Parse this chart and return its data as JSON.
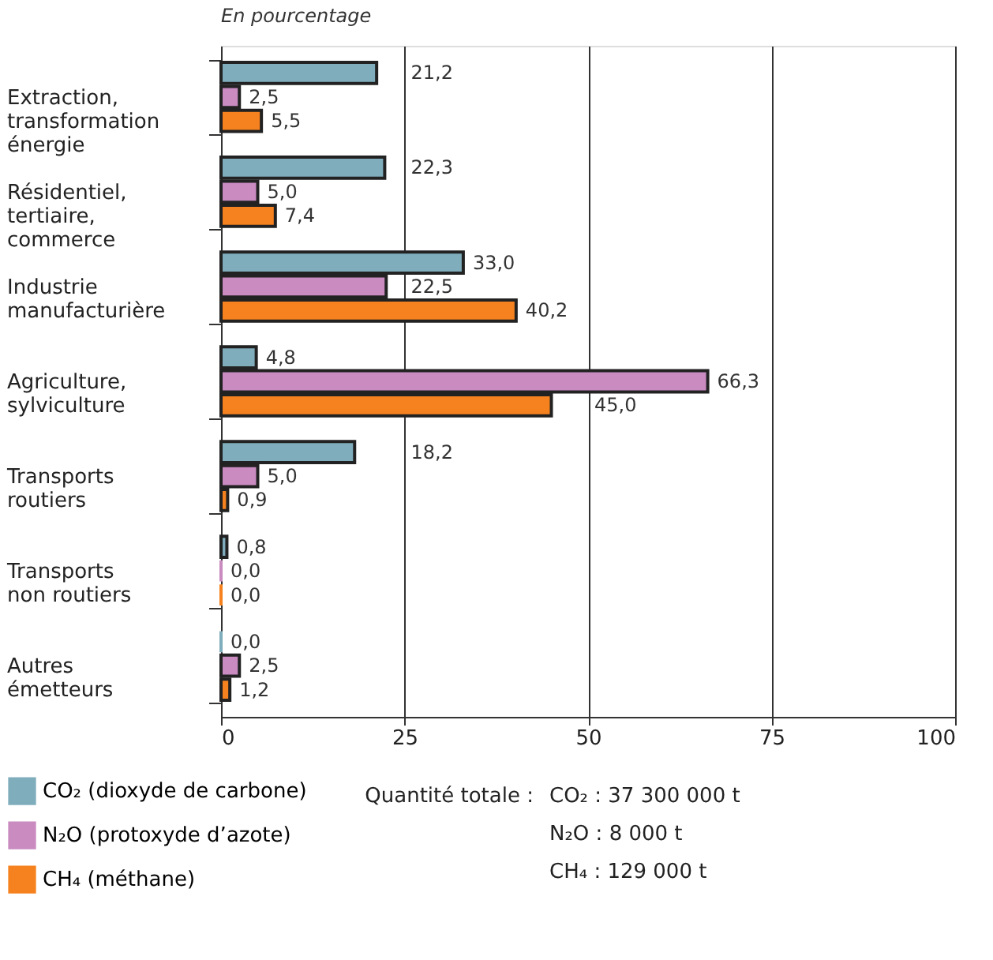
{
  "chart_data": {
    "type": "bar",
    "orientation": "horizontal",
    "title": "En pourcentage",
    "categories": [
      "Extraction,\ntransformation\nénergie",
      "Résidentiel,\ntertiaire,\ncommerce",
      "Industrie\nmanufacturière",
      "Agriculture,\nsylviculture",
      "Transports\nroutiers",
      "Transports\nnon routiers",
      "Autres\németteurs"
    ],
    "series": [
      {
        "name": "CO₂ (dioxyde de carbone)",
        "color": "#7fadbc",
        "values": [
          21.2,
          22.3,
          33.0,
          4.8,
          18.2,
          0.8,
          0.0
        ],
        "value_labels": [
          "21,2",
          "22,3",
          "33,0",
          "4,8",
          "18,2",
          "0,8",
          "0,0"
        ]
      },
      {
        "name": "N₂O (protoxyde d’azote)",
        "color": "#c98bc0",
        "values": [
          2.5,
          5.0,
          22.5,
          66.3,
          5.0,
          0.0,
          2.5
        ],
        "value_labels": [
          "2,5",
          "5,0",
          "22,5",
          "66,3",
          "5,0",
          "0,0",
          "2,5"
        ]
      },
      {
        "name": "CH₄ (méthane)",
        "color": "#f5821f",
        "values": [
          5.5,
          7.4,
          40.2,
          45.0,
          0.9,
          0.0,
          1.2
        ],
        "value_labels": [
          "5,5",
          "7,4",
          "40,2",
          "45,0",
          "0,9",
          "0,0",
          "1,2"
        ]
      }
    ],
    "xlim": [
      0,
      100
    ],
    "xticks": [
      0,
      25,
      50,
      75,
      100
    ],
    "grid": "x",
    "legend": "bottom",
    "annotations": [
      "Quantité totale :",
      "CO₂ : 37 300 000 t",
      "N₂O : 8 000 t",
      "CH₄ : 129 000 t"
    ]
  }
}
